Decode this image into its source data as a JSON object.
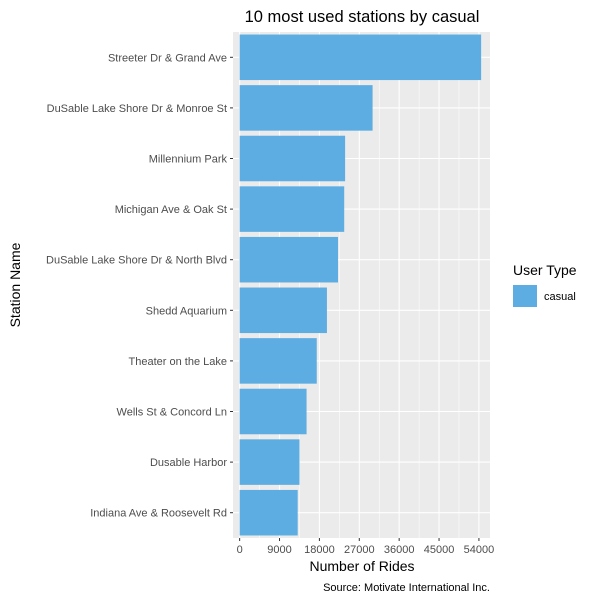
{
  "chart_data": {
    "type": "bar",
    "orientation": "horizontal",
    "title": "10 most used stations by casual",
    "xlabel": "Number of Rides",
    "ylabel": "Station Name",
    "caption": "Source: Motivate International Inc.",
    "categories": [
      "Streeter Dr & Grand Ave",
      "DuSable Lake Shore Dr & Monroe St",
      "Millennium Park",
      "Michigan Ave & Oak St",
      "DuSable Lake Shore Dr & North Blvd",
      "Shedd Aquarium",
      "Theater on the Lake",
      "Wells St & Concord Ln",
      "Dusable Harbor",
      "Indiana Ave & Roosevelt Rd"
    ],
    "series": [
      {
        "name": "casual",
        "color": "#5dade2",
        "values": [
          54500,
          30000,
          23800,
          23600,
          22200,
          19700,
          17400,
          15100,
          13500,
          13100
        ]
      }
    ],
    "xlim": [
      -1500,
      56500
    ],
    "xticks": [
      0,
      9000,
      18000,
      27000,
      36000,
      45000,
      54000
    ],
    "xtick_labels": [
      "0",
      "9000",
      "18000",
      "27000",
      "36000",
      "45000",
      "54000"
    ],
    "grid": true,
    "legend": {
      "title": "User Type",
      "position": "right"
    }
  }
}
